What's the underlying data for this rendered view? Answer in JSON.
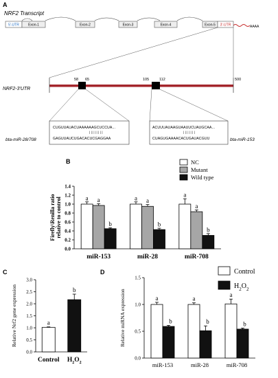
{
  "panels": {
    "A": {
      "letter": "A",
      "title": "NRF2 Transcript",
      "transcript": {
        "features": [
          {
            "label": "5'-UTR",
            "kind": "utr5"
          },
          {
            "label": "Exon-1",
            "kind": "exon"
          },
          {
            "label": "Exon-2",
            "kind": "exon"
          },
          {
            "label": "Exon-3",
            "kind": "exon"
          },
          {
            "label": "Exon-4",
            "kind": "exon"
          },
          {
            "label": "Exon-5",
            "kind": "exon"
          },
          {
            "label": "3'-UTR",
            "kind": "utr3"
          }
        ],
        "polyA": "AAAA"
      },
      "utr_map": {
        "label": "NRF2-3'UTR",
        "positions": [
          "58",
          "65",
          "105",
          "112",
          "500"
        ]
      },
      "site1": {
        "mrna": "CUGUUAUACUAAAAAAGCUCCUA...",
        "pairs": "| | | | | | | |",
        "mirna": "GAGUUAUCUGACACUCGAGGAA",
        "mirna_name": "bta-miR-28/708"
      },
      "site2": {
        "mrna": "ACUUUAUAAGUAAUUCUAUGCAA...",
        "pairs": "| | | | | | |",
        "mirna": "CUAGUGAAAACACUGAUACGUU",
        "mirna_name": "bta-miR-153"
      }
    },
    "B": {
      "letter": "B"
    },
    "C": {
      "letter": "C"
    },
    "D": {
      "letter": "D"
    }
  },
  "chart_data": [
    {
      "id": "B",
      "type": "bar",
      "categories": [
        "miR-153",
        "miR-28",
        "miR-708"
      ],
      "series": [
        {
          "name": "NC",
          "values": [
            1.0,
            1.0,
            1.0
          ],
          "errors": [
            0.05,
            0.05,
            0.12
          ],
          "color": "#ffffff"
        },
        {
          "name": "Mutant",
          "values": [
            0.97,
            0.95,
            0.83
          ],
          "errors": [
            0.04,
            0.04,
            0.04
          ],
          "color": "#a6a6a6"
        },
        {
          "name": "Wild type",
          "values": [
            0.45,
            0.43,
            0.3
          ],
          "errors": [
            0.02,
            0.03,
            0.04
          ],
          "color": "#111111"
        }
      ],
      "letters": [
        [
          "a",
          "a",
          "b"
        ],
        [
          "a",
          "a",
          "b"
        ],
        [
          "a",
          "a",
          "b"
        ]
      ],
      "ylabel": "Firefly\\Renilla ratio relative to control",
      "ylim": [
        0,
        1.4
      ],
      "yticks": [
        "0.0",
        "0.2",
        "0.4",
        "0.6",
        "0.8",
        "1.0",
        "1.2",
        "1.4"
      ],
      "legend_position": "top-right"
    },
    {
      "id": "C",
      "type": "bar",
      "categories": [
        "Control",
        "H2O2"
      ],
      "category_display": [
        {
          "base": "Control",
          "sub": ""
        },
        {
          "base": "H",
          "sub": "2",
          "tail": "O",
          "sub2": "2"
        }
      ],
      "values": [
        1.02,
        2.17
      ],
      "errors": [
        0.02,
        0.23
      ],
      "colors": [
        "#ffffff",
        "#111111"
      ],
      "letters": [
        "a",
        "b"
      ],
      "ylabel": "Relative Nrf2 gene expression",
      "ylim": [
        0,
        3.0
      ],
      "yticks": [
        "0.0",
        "0.5",
        "1.0",
        "1.5",
        "2.0",
        "2.5",
        "3.0"
      ]
    },
    {
      "id": "D",
      "type": "bar",
      "categories": [
        "miR-153",
        "miR-28",
        "miR-708"
      ],
      "series": [
        {
          "name": "Control",
          "values": [
            1.0,
            1.0,
            1.01
          ],
          "errors": [
            0.04,
            0.03,
            0.09
          ],
          "color": "#ffffff"
        },
        {
          "name": "H2O2",
          "values": [
            0.59,
            0.51,
            0.54
          ],
          "errors": [
            0.02,
            0.09,
            0.02
          ],
          "color": "#111111"
        }
      ],
      "letters": [
        [
          "a",
          "b"
        ],
        [
          "a",
          "b"
        ],
        [
          "a",
          "b"
        ]
      ],
      "ylabel": "Relative miRNA expression",
      "ylim": [
        0,
        1.5
      ],
      "yticks": [
        "0.0",
        "0.5",
        "1.0",
        "1.5"
      ],
      "legend_position": "top-right"
    }
  ]
}
